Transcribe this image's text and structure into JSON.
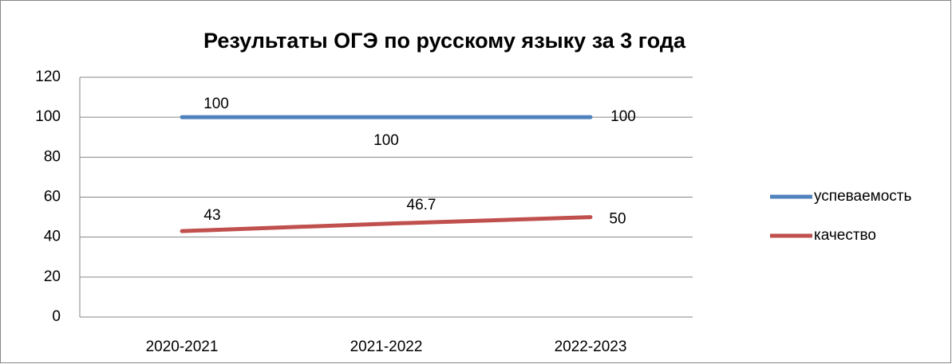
{
  "chart_data": {
    "type": "line",
    "title": "Результаты ОГЭ по русскому языку за 3 года",
    "categories": [
      "2020-2021",
      "2021-2022",
      "2022-2023"
    ],
    "series": [
      {
        "name": "успеваемость",
        "color": "#4f81bd",
        "values": [
          100,
          100,
          100
        ]
      },
      {
        "name": "качество",
        "color": "#c0504d",
        "values": [
          43,
          46.7,
          50
        ]
      }
    ],
    "ylim": [
      0,
      120
    ],
    "yticks": [
      0,
      20,
      40,
      60,
      80,
      100,
      120
    ],
    "grid": true,
    "legend": "right"
  }
}
